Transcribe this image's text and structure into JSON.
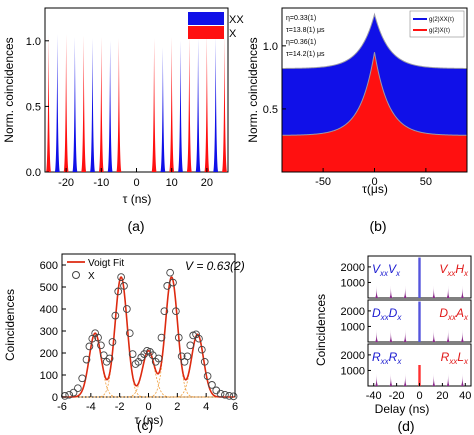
{
  "captions": [
    "(a)",
    "(b)",
    "(c)",
    "(d)"
  ],
  "chart_data": [
    {
      "id": "a",
      "type": "bar",
      "xlabel": "τ (ns)",
      "ylabel": "Norm. coincidences",
      "xlim": [
        -26,
        26
      ],
      "ylim": [
        0,
        1.25
      ],
      "xticks": [
        -20,
        -10,
        0,
        10,
        20
      ],
      "yticks": [
        0.0,
        0.5,
        1.0
      ],
      "legend": {
        "position": "top-right",
        "entries": [
          {
            "name": "XX",
            "color": "#1010e8"
          },
          {
            "name": "X",
            "color": "#ff1010"
          }
        ]
      },
      "series": [
        {
          "name": "XX",
          "color": "#1010e8",
          "peaks": [
            [
              -22.5,
              1.05
            ],
            [
              -17.5,
              1.03
            ],
            [
              -12.5,
              1.02
            ],
            [
              -7.5,
              1.0
            ],
            [
              -2.5,
              0.0
            ],
            [
              2.5,
              0.0
            ],
            [
              7.5,
              0.95
            ],
            [
              12.5,
              1.0
            ],
            [
              17.5,
              1.02
            ],
            [
              22.5,
              1.03
            ]
          ]
        },
        {
          "name": "X",
          "color": "#ff1010",
          "peaks": [
            [
              -25,
              1.05
            ],
            [
              -20,
              1.05
            ],
            [
              -15,
              1.04
            ],
            [
              -10,
              1.03
            ],
            [
              -5,
              1.02
            ],
            [
              5,
              1.02
            ],
            [
              10,
              1.03
            ],
            [
              15,
              1.04
            ],
            [
              20,
              1.05
            ],
            [
              25,
              1.05
            ]
          ]
        }
      ]
    },
    {
      "id": "b",
      "type": "area",
      "xlabel": "τ(μs)",
      "ylabel": "Norm. coincidences",
      "xlim": [
        -90,
        90
      ],
      "ylim": [
        0,
        1.3
      ],
      "xticks": [
        -50,
        0,
        50
      ],
      "yticks": [
        0.5,
        1.0
      ],
      "annotations": [
        "η=0.33(1)",
        "τ=13.8(1) μs",
        "η=0.36(1)",
        "τ=14.2(1) μs"
      ],
      "legend": {
        "position": "top-right",
        "entries": [
          "g(2)XX(τ)",
          "g(2)X(τ)"
        ]
      },
      "series": [
        {
          "name": "XX",
          "color": "#1010e8",
          "baseline": 0.82,
          "peak": 1.25,
          "tau": 14.2
        },
        {
          "name": "X",
          "color": "#ff1010",
          "baseline": 0.29,
          "peak": 0.95,
          "tau": 13.8
        }
      ]
    },
    {
      "id": "c",
      "type": "scatter",
      "xlabel": "τ (ns)",
      "ylabel": "Coincidences",
      "xlim": [
        -6,
        6
      ],
      "ylim": [
        0,
        650
      ],
      "xticks": [
        -6,
        -4,
        -2,
        0,
        2,
        4,
        6
      ],
      "yticks": [
        0,
        100,
        200,
        300,
        400,
        500,
        600
      ],
      "annotation": "V = 0.63(2)",
      "legend": {
        "position": "top-left",
        "entries": [
          "Voigt Fit",
          "X"
        ]
      },
      "fit_peaks": [
        [
          -3.7,
          290
        ],
        [
          -1.9,
          545
        ],
        [
          0.0,
          210
        ],
        [
          1.6,
          545
        ],
        [
          3.4,
          285
        ]
      ],
      "x": [
        -5.8,
        -5.5,
        -5.2,
        -4.9,
        -4.6,
        -4.3,
        -4.1,
        -3.9,
        -3.7,
        -3.5,
        -3.3,
        -3.1,
        -2.9,
        -2.7,
        -2.5,
        -2.3,
        -2.1,
        -1.9,
        -1.7,
        -1.5,
        -1.3,
        -1.1,
        -0.9,
        -0.7,
        -0.5,
        -0.3,
        -0.1,
        0.1,
        0.3,
        0.5,
        0.7,
        0.9,
        1.1,
        1.3,
        1.5,
        1.7,
        1.9,
        2.1,
        2.3,
        2.5,
        2.7,
        2.9,
        3.1,
        3.3,
        3.5,
        3.7,
        3.9,
        4.1,
        4.4,
        4.7,
        5.0,
        5.3,
        5.6,
        5.9
      ],
      "y": [
        5,
        10,
        20,
        40,
        85,
        170,
        230,
        265,
        290,
        270,
        235,
        190,
        160,
        175,
        250,
        370,
        480,
        545,
        505,
        400,
        290,
        195,
        150,
        160,
        180,
        195,
        210,
        205,
        190,
        160,
        175,
        270,
        390,
        505,
        565,
        520,
        390,
        270,
        185,
        160,
        185,
        235,
        280,
        285,
        265,
        215,
        160,
        95,
        55,
        30,
        15,
        10,
        5,
        3
      ]
    },
    {
      "id": "d",
      "type": "bar",
      "xlabel": "Delay (ns)",
      "ylabel": "Coincidences",
      "xlim": [
        -45,
        45
      ],
      "ylim": [
        0,
        2700
      ],
      "xticks": [
        -40,
        -20,
        0,
        20,
        40
      ],
      "yticks": [
        1000,
        2000
      ],
      "panels": [
        {
          "left_label": "VxxVx",
          "right_label": "VxxHx",
          "zero_color": "#5555dd",
          "zero_value": 2600
        },
        {
          "left_label": "DxxDx",
          "right_label": "DxxAx",
          "zero_color": "#5555dd",
          "zero_value": 2600
        },
        {
          "left_label": "RxxRx",
          "right_label": "RxxLx",
          "zero_color": "#ff3030",
          "zero_value": 1350
        }
      ],
      "side_peaks": [
        -37.5,
        -25,
        -12.5,
        12.5,
        25,
        37.5
      ],
      "side_value": 800,
      "side_color": "#8a2a8a"
    }
  ]
}
